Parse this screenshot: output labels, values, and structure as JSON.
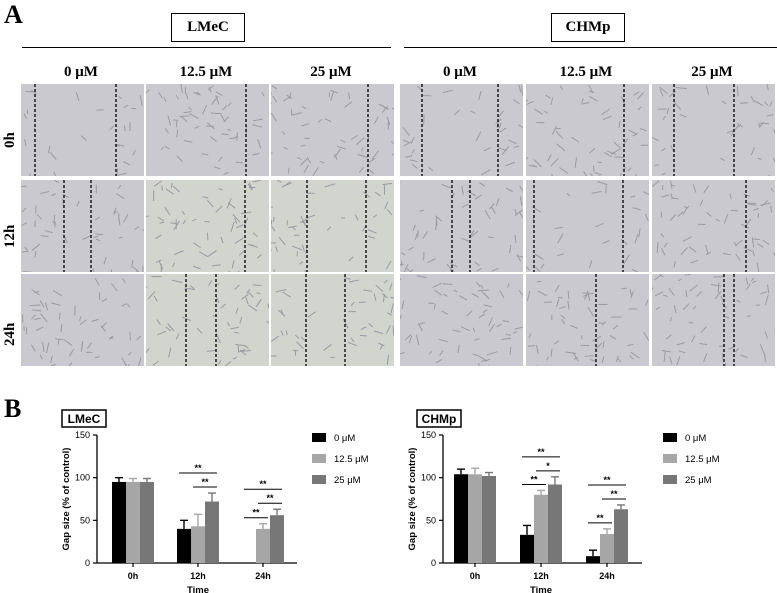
{
  "panel_a": {
    "label": "A",
    "groups": [
      "LMeC",
      "CHMp"
    ],
    "columns": [
      "0 μM",
      "12.5 μM",
      "25 μM",
      "0 μM",
      "12.5 μM",
      "25 μM"
    ],
    "rows": [
      "0h",
      "12h",
      "24h"
    ],
    "colors": {
      "cell_bg": "#c9c9cf",
      "cell_bg_alt": "#d2d4ce",
      "cell_line": "#9a9aa0",
      "wound_line": "#000000"
    }
  },
  "panel_b": {
    "label": "B"
  },
  "chart_data": [
    {
      "type": "bar",
      "title": "LMeC",
      "xlabel": "Time",
      "ylabel": "Gap size (% of control)",
      "categories": [
        "0h",
        "12h",
        "24h"
      ],
      "ylim": [
        0,
        150
      ],
      "yticks": [
        "0",
        "50",
        "100",
        "150"
      ],
      "series": [
        {
          "name": "0 μM",
          "color": "#000000",
          "values": [
            95,
            40,
            0
          ],
          "errors": [
            5,
            10,
            0
          ]
        },
        {
          "name": "12.5 μM",
          "color": "#a6a6a6",
          "values": [
            95,
            43,
            40
          ],
          "errors": [
            4,
            14,
            6
          ]
        },
        {
          "name": "25 μM",
          "color": "#777777",
          "values": [
            95,
            72,
            56
          ],
          "errors": [
            4,
            10,
            7
          ]
        }
      ],
      "annotations": [
        {
          "text": "**",
          "group": 1,
          "from": 0,
          "to": 2,
          "level": 1
        },
        {
          "text": "**",
          "group": 1,
          "from": 1,
          "to": 2,
          "level": 0
        },
        {
          "text": "**",
          "group": 2,
          "from": 0,
          "to": 2,
          "level": 1
        },
        {
          "text": "**",
          "group": 2,
          "from": 0,
          "to": 1,
          "level": 0
        },
        {
          "text": "**",
          "group": 2,
          "from": 1,
          "to": 2,
          "level": 0
        }
      ],
      "legend_position": "right"
    },
    {
      "type": "bar",
      "title": "CHMp",
      "xlabel": "Time",
      "ylabel": "Gap size (% of control)",
      "categories": [
        "0h",
        "12h",
        "24h"
      ],
      "ylim": [
        0,
        150
      ],
      "yticks": [
        "0",
        "50",
        "100",
        "150"
      ],
      "series": [
        {
          "name": "0 μM",
          "color": "#000000",
          "values": [
            104,
            33,
            8
          ],
          "errors": [
            6,
            11,
            7
          ]
        },
        {
          "name": "12.5 μM",
          "color": "#a6a6a6",
          "values": [
            104,
            80,
            34
          ],
          "errors": [
            7,
            5,
            6
          ]
        },
        {
          "name": "25 μM",
          "color": "#777777",
          "values": [
            102,
            92,
            63
          ],
          "errors": [
            4,
            9,
            5
          ]
        }
      ],
      "annotations": [
        {
          "text": "**",
          "group": 1,
          "from": 0,
          "to": 2,
          "level": 1
        },
        {
          "text": "**",
          "group": 1,
          "from": 0,
          "to": 1,
          "level": 0
        },
        {
          "text": "*",
          "group": 1,
          "from": 1,
          "to": 2,
          "level": 0
        },
        {
          "text": "**",
          "group": 2,
          "from": 0,
          "to": 2,
          "level": 1
        },
        {
          "text": "**",
          "group": 2,
          "from": 0,
          "to": 1,
          "level": 0
        },
        {
          "text": "**",
          "group": 2,
          "from": 1,
          "to": 2,
          "level": 0
        }
      ],
      "legend_position": "right"
    }
  ]
}
